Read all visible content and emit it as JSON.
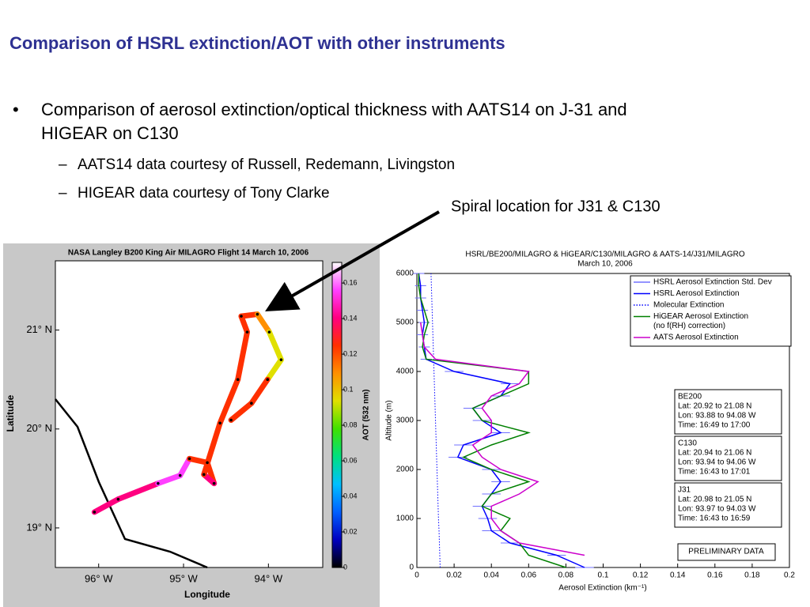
{
  "title": "Comparison of HSRL extinction/AOT with other instruments",
  "bullets": [
    {
      "lines": [
        "Comparison of aerosol extinction/optical thickness with AATS14 on J-31 and",
        "HIGEAR on C130"
      ],
      "sub": [
        "AATS14 data courtesy of Russell, Redemann, Livingston",
        "HIGEAR data courtesy of Tony Clarke"
      ]
    }
  ],
  "annotation": "Spiral location for J31 & C130",
  "map": {
    "title": "NASA Langley B200 King Air MILAGRO Flight 14 March 10, 2006",
    "xlabel": "Longitude",
    "ylabel": "Latitude",
    "xlim": [
      -96.51,
      -93.36
    ],
    "ylim": [
      18.6,
      21.7
    ],
    "xticks": [
      {
        "value": -96,
        "label": "96° W"
      },
      {
        "value": -95,
        "label": "95° W"
      },
      {
        "value": -94,
        "label": "94° W"
      }
    ],
    "yticks": [
      {
        "value": 19,
        "label": "19° N"
      },
      {
        "value": 20,
        "label": "20° N"
      },
      {
        "value": 21,
        "label": "21° N"
      }
    ],
    "colorbar": {
      "label": "AOT (532 nm)",
      "clim": [
        0,
        0.1716
      ],
      "ticks": [
        0,
        0.02,
        0.04,
        0.06,
        0.08,
        0.1,
        0.12,
        0.14,
        0.16
      ],
      "colormap": [
        "#000000",
        "#0000c0",
        "#0060ff",
        "#00c0ff",
        "#00e080",
        "#40e000",
        "#e0e000",
        "#ff9000",
        "#ff3000",
        "#ff0080",
        "#ff40ff",
        "#ffffff"
      ]
    },
    "track": {
      "lon": [
        -96.05,
        -95.77,
        -95.3,
        -95.04,
        -94.93,
        -94.72,
        -94.64,
        -94.76,
        -94.57,
        -94.36,
        -94.25,
        -94.32,
        -94.13,
        -93.99,
        -93.85,
        -94.01,
        -94.2,
        -94.44
      ],
      "lat": [
        19.16,
        19.29,
        19.45,
        19.53,
        19.7,
        19.66,
        19.45,
        19.54,
        20.06,
        20.5,
        20.98,
        21.14,
        21.16,
        20.98,
        20.7,
        20.5,
        20.26,
        20.09
      ],
      "aot": [
        0.13,
        0.14,
        0.14,
        0.15,
        0.15,
        0.13,
        0.12,
        0.14,
        0.12,
        0.12,
        0.12,
        0.13,
        0.13,
        0.11,
        0.09,
        0.1,
        0.12,
        0.12
      ]
    }
  },
  "chart_data": {
    "type": "line",
    "title": [
      "HSRL/BE200/MILAGRO & HiGEAR/C130/MILAGRO & AATS-14/J31/MILAGRO",
      "March 10, 2006"
    ],
    "xlabel": "Aerosol Extinction (km⁻¹)",
    "ylabel": "Altitude (m)",
    "xlim": [
      0,
      0.2
    ],
    "xticks": [
      0,
      0.02,
      0.04,
      0.06,
      0.08,
      0.1,
      0.12,
      0.14,
      0.16,
      0.18,
      0.2
    ],
    "ylim": [
      0,
      6000
    ],
    "yticks": [
      0,
      1000,
      2000,
      3000,
      4000,
      5000,
      6000
    ],
    "y": [
      0,
      250,
      500,
      750,
      1000,
      1250,
      1500,
      1750,
      2000,
      2250,
      2500,
      2750,
      3000,
      3250,
      3500,
      3750,
      4000,
      4250,
      4500,
      4750,
      5000,
      5250,
      5500,
      5750,
      6000
    ],
    "series": [
      {
        "name": "HSRL Aerosol Extinction Std. Dev",
        "color": "#7070ff",
        "style": "errorbar",
        "values": [
          0.005,
          0.005,
          0.005,
          0.005,
          0.005,
          0.005,
          0.005,
          0.005,
          0.005,
          0.005,
          0.005,
          0.005,
          0.005,
          0.005,
          0.005,
          0.005,
          0.005,
          0.003,
          0.003,
          0.003,
          0.003,
          0.003,
          0.003,
          0.003,
          0.003
        ]
      },
      {
        "name": "HSRL Aerosol Extinction",
        "color": "#0000ff",
        "style": "solid",
        "values": [
          0.09,
          0.075,
          0.05,
          0.04,
          0.038,
          0.035,
          0.04,
          0.045,
          0.04,
          0.022,
          0.025,
          0.045,
          0.035,
          0.03,
          0.045,
          0.05,
          0.02,
          0.005,
          0.004,
          0.003,
          0.004,
          0.003,
          0.002,
          0.002,
          0.001
        ]
      },
      {
        "name": "Molecular Extinction",
        "color": "#0000ff",
        "style": "dotted",
        "values": [
          0.0125,
          0.0123,
          0.0121,
          0.0119,
          0.0116,
          0.0114,
          0.0112,
          0.011,
          0.0108,
          0.0106,
          0.0104,
          0.0102,
          0.01,
          0.0098,
          0.0096,
          0.0094,
          0.0092,
          0.009,
          0.0088,
          0.0086,
          0.0084,
          0.0082,
          0.008,
          0.0078,
          0.0076
        ]
      },
      {
        "name": "HiGEAR Aerosol Extinction",
        "name_line2": "(no f(RH) correction)",
        "color": "#008000",
        "style": "solid",
        "values": [
          0.08,
          0.06,
          0.055,
          0.045,
          0.05,
          0.035,
          0.04,
          0.06,
          0.04,
          0.025,
          0.04,
          0.06,
          0.035,
          0.03,
          0.045,
          0.06,
          0.06,
          0.005,
          0.003,
          0.004,
          0.006,
          0.004,
          0.002,
          0.001,
          0.001
        ]
      },
      {
        "name": "AATS Aerosol Extinction",
        "color": "#cc00cc",
        "style": "solid",
        "values": [
          null,
          0.09,
          0.055,
          0.045,
          0.04,
          0.04,
          0.055,
          0.065,
          0.045,
          0.035,
          0.03,
          0.04,
          0.04,
          0.035,
          0.04,
          0.055,
          0.06,
          0.01,
          0.004,
          0.003,
          0.002,
          null,
          null,
          null,
          null
        ]
      }
    ],
    "boxes": [
      {
        "title": "BE200",
        "lines": [
          "Lat: 20.92 to 21.08 N",
          "Lon: 93.88 to 94.08 W",
          "Time: 16:49 to 17:00"
        ]
      },
      {
        "title": "C130",
        "lines": [
          "Lat: 20.94 to 21.06 N",
          "Lon: 93.94 to 94.06 W",
          "Time: 16:43 to 17:01"
        ]
      },
      {
        "title": "J31",
        "lines": [
          "Lat: 20.98 to 21.05 N",
          "Lon: 93.97 to 94.03 W",
          "Time: 16:43 to 16:59"
        ]
      }
    ],
    "note": "PRELIMINARY DATA"
  }
}
